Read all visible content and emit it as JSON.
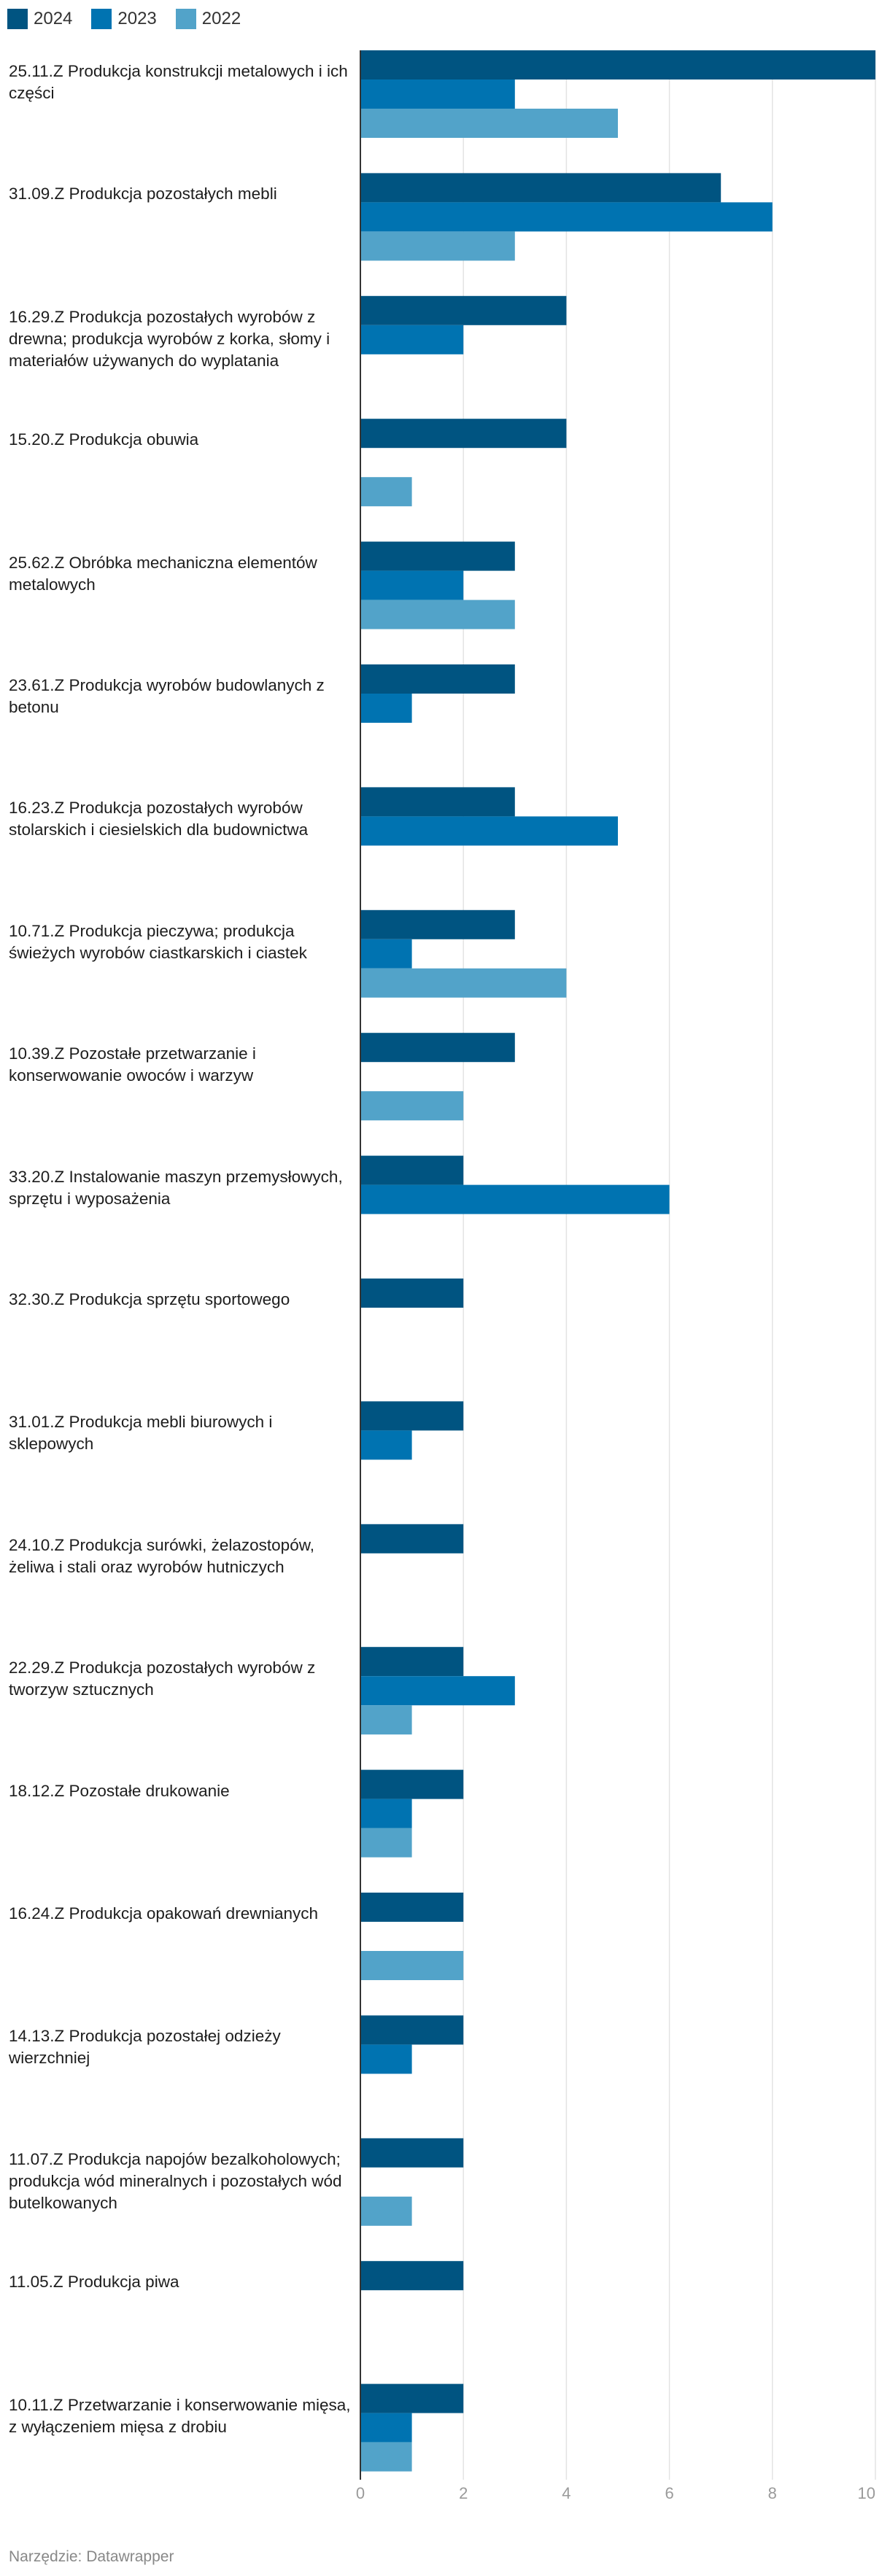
{
  "chart_data": {
    "type": "bar",
    "orientation": "horizontal",
    "xlim": [
      0,
      10
    ],
    "ticks": [
      0,
      2,
      4,
      6,
      8,
      10
    ],
    "grid": true,
    "legend_position": "top-left",
    "series": [
      {
        "name": "2024",
        "color": "#005481",
        "values": [
          10,
          7,
          4,
          4,
          3,
          3,
          3,
          3,
          3,
          2,
          2,
          2,
          2,
          2,
          2,
          2,
          2,
          2,
          2,
          2
        ]
      },
      {
        "name": "2023",
        "color": "#0073b1",
        "values": [
          3,
          8,
          2,
          0,
          2,
          1,
          5,
          1,
          0,
          6,
          0,
          1,
          0,
          3,
          1,
          0,
          1,
          0,
          0,
          1
        ]
      },
      {
        "name": "2022",
        "color": "#52a3c9",
        "values": [
          5,
          3,
          0,
          1,
          3,
          0,
          0,
          4,
          2,
          0,
          0,
          0,
          0,
          1,
          1,
          2,
          0,
          1,
          0,
          1
        ]
      }
    ],
    "categories": [
      "25.11.Z Produkcja konstrukcji metalowych i ich części",
      "31.09.Z Produkcja pozostałych mebli",
      "16.29.Z Produkcja pozostałych wyrobów z drewna; produkcja wyrobów z korka, słomy i materiałów używanych do wyplatania",
      "15.20.Z Produkcja obuwia",
      "25.62.Z Obróbka mechaniczna elementów metalowych",
      "23.61.Z Produkcja wyrobów budowlanych z betonu",
      "16.23.Z Produkcja pozostałych wyrobów stolarskich i ciesielskich dla budownictwa",
      "10.71.Z Produkcja pieczywa; produkcja świeżych wyrobów ciastkarskich i ciastek",
      "10.39.Z Pozostałe przetwarzanie i konserwowanie owoców i warzyw",
      "33.20.Z Instalowanie maszyn przemysłowych, sprzętu i wyposażenia",
      "32.30.Z Produkcja sprzętu sportowego",
      "31.01.Z Produkcja mebli biurowych i sklepowych",
      "24.10.Z Produkcja surówki, żelazostopów, żeliwa i stali oraz wyrobów hutniczych",
      "22.29.Z Produkcja pozostałych wyrobów z tworzyw sztucznych",
      "18.12.Z Pozostałe drukowanie",
      "16.24.Z Produkcja opakowań drewnianych",
      "14.13.Z Produkcja pozostałej odzieży wierzchniej",
      "11.07.Z Produkcja napojów bezalkoholowych; produkcja wód mineralnych i pozostałych wód butelkowanych",
      "11.05.Z Produkcja piwa",
      "10.11.Z Przetwarzanie i konserwowanie mięsa, z wyłączeniem mięsa z drobiu"
    ]
  },
  "footer": "Narzędzie: Datawrapper"
}
